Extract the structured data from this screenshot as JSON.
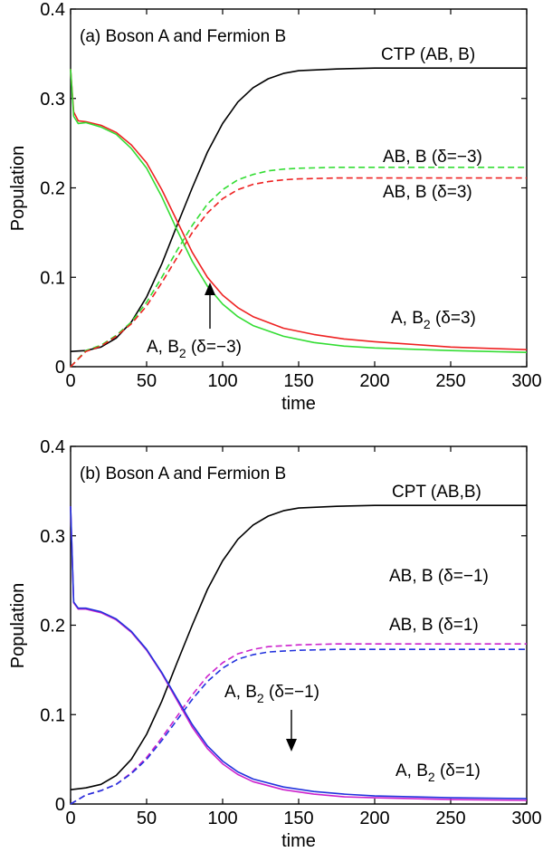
{
  "chart_data": [
    {
      "type": "line",
      "title": "(a) Boson A and Fermion B",
      "xlabel": "time",
      "ylabel": "Population",
      "xlim": [
        0,
        300
      ],
      "ylim": [
        0,
        0.4
      ],
      "xticks": [
        0,
        50,
        100,
        150,
        200,
        250,
        300
      ],
      "yticks": [
        0,
        0.1,
        0.2,
        0.3,
        0.4
      ],
      "ytick_labels": [
        "0",
        "0.1",
        "0.2",
        "0.3",
        "0.4"
      ],
      "grid": false,
      "series": [
        {
          "name": "CTP (AB, B)",
          "color": "#000000",
          "dash": false,
          "x": [
            0,
            10,
            20,
            30,
            40,
            50,
            60,
            70,
            80,
            90,
            100,
            110,
            120,
            130,
            140,
            150,
            175,
            200,
            250,
            300
          ],
          "y": [
            0.017,
            0.018,
            0.022,
            0.032,
            0.05,
            0.078,
            0.115,
            0.158,
            0.2,
            0.24,
            0.272,
            0.296,
            0.312,
            0.322,
            0.328,
            0.331,
            0.333,
            0.334,
            0.334,
            0.334
          ]
        },
        {
          "name": "AB, B (δ=−3)",
          "color": "#33dd33",
          "dash": true,
          "x": [
            0,
            10,
            20,
            30,
            40,
            50,
            60,
            70,
            80,
            90,
            100,
            110,
            120,
            130,
            140,
            150,
            175,
            200,
            250,
            300
          ],
          "y": [
            0.0,
            0.018,
            0.024,
            0.035,
            0.05,
            0.072,
            0.1,
            0.13,
            0.158,
            0.182,
            0.198,
            0.209,
            0.215,
            0.219,
            0.221,
            0.222,
            0.223,
            0.223,
            0.223,
            0.223
          ]
        },
        {
          "name": "AB, B (δ=3)",
          "color": "#ee2222",
          "dash": true,
          "x": [
            0,
            10,
            20,
            30,
            40,
            50,
            60,
            70,
            80,
            90,
            100,
            110,
            120,
            130,
            140,
            150,
            175,
            200,
            250,
            300
          ],
          "y": [
            0.0,
            0.017,
            0.023,
            0.034,
            0.048,
            0.068,
            0.094,
            0.122,
            0.15,
            0.172,
            0.188,
            0.198,
            0.204,
            0.207,
            0.209,
            0.21,
            0.211,
            0.211,
            0.211,
            0.211
          ]
        },
        {
          "name": "A, B2 (δ=3)",
          "color": "#ee2222",
          "dash": false,
          "x": [
            0,
            2,
            5,
            10,
            20,
            30,
            40,
            50,
            60,
            70,
            80,
            90,
            100,
            110,
            120,
            140,
            160,
            180,
            200,
            250,
            300
          ],
          "y": [
            0.333,
            0.285,
            0.275,
            0.274,
            0.27,
            0.262,
            0.248,
            0.228,
            0.198,
            0.163,
            0.128,
            0.1,
            0.08,
            0.066,
            0.056,
            0.043,
            0.036,
            0.031,
            0.028,
            0.022,
            0.019
          ]
        },
        {
          "name": "A, B2 (δ=−3)",
          "color": "#33dd33",
          "dash": false,
          "x": [
            0,
            2,
            5,
            10,
            20,
            30,
            40,
            50,
            60,
            70,
            80,
            90,
            100,
            110,
            120,
            140,
            160,
            180,
            200,
            250,
            300
          ],
          "y": [
            0.333,
            0.28,
            0.272,
            0.273,
            0.268,
            0.26,
            0.244,
            0.222,
            0.19,
            0.153,
            0.118,
            0.09,
            0.07,
            0.056,
            0.046,
            0.034,
            0.027,
            0.023,
            0.021,
            0.018,
            0.016
          ]
        }
      ],
      "annotations": {
        "ctp": "CTP (AB, B)",
        "ab_b_m3": "AB, B (δ=−3)",
        "ab_b_p3": "AB, B (δ=3)",
        "ab2_p3_main": "A, B",
        "ab2_p3_sub": "2",
        "ab2_p3_tail": " (δ=3)",
        "ab2_m3_main": "A, B",
        "ab2_m3_sub": "2",
        "ab2_m3_tail": " (δ=−3)"
      }
    },
    {
      "type": "line",
      "title": "(b) Boson A and Fermion B",
      "xlabel": "time",
      "ylabel": "Population",
      "xlim": [
        0,
        300
      ],
      "ylim": [
        0,
        0.4
      ],
      "xticks": [
        0,
        50,
        100,
        150,
        200,
        250,
        300
      ],
      "yticks": [
        0,
        0.1,
        0.2,
        0.3,
        0.4
      ],
      "ytick_labels": [
        "0",
        "0.1",
        "0.2",
        "0.3",
        "0.4"
      ],
      "grid": false,
      "series": [
        {
          "name": "CPT (AB,B)",
          "color": "#000000",
          "dash": false,
          "x": [
            0,
            10,
            20,
            30,
            40,
            50,
            60,
            70,
            80,
            90,
            100,
            110,
            120,
            130,
            140,
            150,
            175,
            200,
            250,
            300
          ],
          "y": [
            0.016,
            0.018,
            0.022,
            0.032,
            0.05,
            0.078,
            0.115,
            0.158,
            0.2,
            0.24,
            0.272,
            0.296,
            0.312,
            0.322,
            0.328,
            0.331,
            0.333,
            0.334,
            0.334,
            0.334
          ]
        },
        {
          "name": "AB, B (δ=−1)",
          "color": "#cc22cc",
          "dash": true,
          "x": [
            0,
            10,
            20,
            30,
            40,
            50,
            60,
            70,
            80,
            90,
            100,
            110,
            120,
            130,
            140,
            150,
            175,
            200,
            250,
            300
          ],
          "y": [
            0.0,
            0.01,
            0.015,
            0.022,
            0.035,
            0.052,
            0.074,
            0.098,
            0.122,
            0.143,
            0.158,
            0.168,
            0.173,
            0.176,
            0.177,
            0.178,
            0.179,
            0.179,
            0.179,
            0.179
          ]
        },
        {
          "name": "AB, B (δ=1)",
          "color": "#2233dd",
          "dash": true,
          "x": [
            0,
            10,
            20,
            30,
            40,
            50,
            60,
            70,
            80,
            90,
            100,
            110,
            120,
            130,
            140,
            150,
            175,
            200,
            250,
            300
          ],
          "y": [
            0.0,
            0.01,
            0.015,
            0.022,
            0.034,
            0.05,
            0.071,
            0.094,
            0.117,
            0.137,
            0.152,
            0.162,
            0.167,
            0.17,
            0.171,
            0.172,
            0.173,
            0.173,
            0.173,
            0.173
          ]
        },
        {
          "name": "A, B2 (δ=−1)",
          "color": "#cc22cc",
          "dash": false,
          "x": [
            0,
            2,
            5,
            10,
            20,
            30,
            40,
            50,
            60,
            70,
            80,
            90,
            100,
            110,
            120,
            140,
            160,
            180,
            200,
            250,
            300
          ],
          "y": [
            0.333,
            0.225,
            0.218,
            0.218,
            0.214,
            0.206,
            0.192,
            0.172,
            0.146,
            0.116,
            0.086,
            0.062,
            0.045,
            0.033,
            0.025,
            0.016,
            0.011,
            0.008,
            0.007,
            0.005,
            0.004
          ]
        },
        {
          "name": "A, B2 (δ=1)",
          "color": "#2233dd",
          "dash": false,
          "x": [
            0,
            2,
            5,
            10,
            20,
            30,
            40,
            50,
            60,
            70,
            80,
            90,
            100,
            110,
            120,
            140,
            160,
            180,
            200,
            250,
            300
          ],
          "y": [
            0.333,
            0.226,
            0.219,
            0.219,
            0.215,
            0.207,
            0.193,
            0.173,
            0.147,
            0.118,
            0.089,
            0.065,
            0.048,
            0.036,
            0.028,
            0.019,
            0.014,
            0.011,
            0.009,
            0.007,
            0.006
          ]
        }
      ],
      "annotations": {
        "ctp": "CPT (AB,B)",
        "ab_b_m1": "AB, B (δ=−1)",
        "ab_b_p1": "AB, B (δ=1)",
        "ab2_m1_main": "A, B",
        "ab2_m1_sub": "2",
        "ab2_m1_tail": " (δ=−1)",
        "ab2_p1_main": "A, B",
        "ab2_p1_sub": "2",
        "ab2_p1_tail": " (δ=1)"
      }
    }
  ]
}
